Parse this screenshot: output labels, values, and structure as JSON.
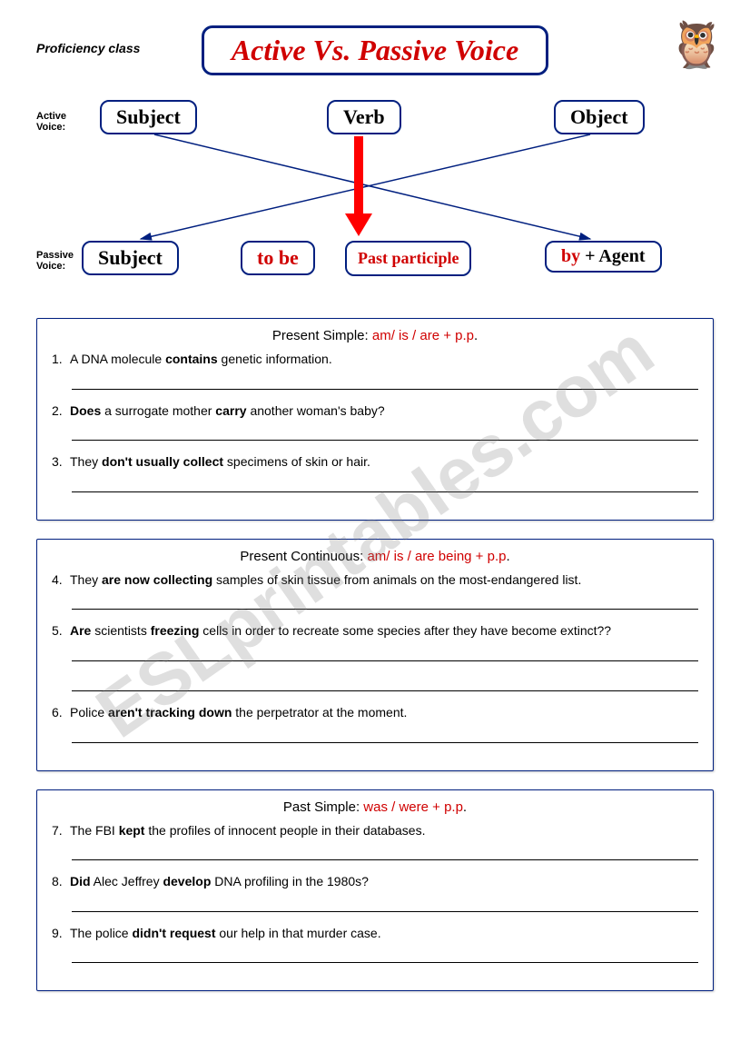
{
  "header": {
    "proficiency": "Proficiency class",
    "title": "Active Vs. Passive Voice"
  },
  "diagram": {
    "active_label": "Active Voice:",
    "passive_label": "Passive Voice:",
    "active_nodes": {
      "subject": "Subject",
      "verb": "Verb",
      "object": "Object"
    },
    "passive_nodes": {
      "subject": "Subject",
      "tobe": "to be",
      "pp": "Past participle",
      "agent": "by + Agent"
    },
    "colors": {
      "border": "#001f7f",
      "red": "#d00000",
      "arrow": "#ff0000"
    }
  },
  "sections": [
    {
      "title_black": "Present Simple:  ",
      "title_red": "am/ is / are  +  p.p",
      "items": [
        {
          "n": "1.",
          "pre": "A DNA molecule ",
          "b": "contains",
          "post": " genetic information."
        },
        {
          "n": "2.",
          "pre": "",
          "b": "Does",
          "post": " a surrogate mother ",
          "b2": "carry",
          "post2": " another woman's baby?"
        },
        {
          "n": "3.",
          "pre": "They ",
          "b": "don't usually collect",
          "post": " specimens of skin or hair."
        }
      ]
    },
    {
      "title_black": "Present Continuous:  ",
      "title_red": "am/ is / are  being +  p.p",
      "items": [
        {
          "n": "4.",
          "pre": "They ",
          "b": "are now collecting",
          "post": " samples of skin tissue from animals on the most-endangered list."
        },
        {
          "n": "5.",
          "pre": "",
          "b": "Are",
          "post": " scientists ",
          "b2": "freezing",
          "post2": " cells in order to recreate some species after they have become extinct??",
          "double": true
        },
        {
          "n": "6.",
          "pre": "Police ",
          "b": "aren't tracking down",
          "post": " the perpetrator at the moment."
        }
      ]
    },
    {
      "title_black": "Past Simple:  ",
      "title_red": "was / were  +  p.p",
      "items": [
        {
          "n": "7.",
          "pre": "The FBI ",
          "b": "kept",
          "post": " the profiles of innocent people in their databases."
        },
        {
          "n": "8.",
          "pre": "",
          "b": "Did",
          "post": " Alec Jeffrey ",
          "b2": "develop",
          "post2": " DNA profiling in the 1980s?"
        },
        {
          "n": "9.",
          "pre": "The police ",
          "b": "didn't request",
          "post": " our help in that murder case."
        }
      ]
    }
  ],
  "watermark": "ESLprintables.com"
}
